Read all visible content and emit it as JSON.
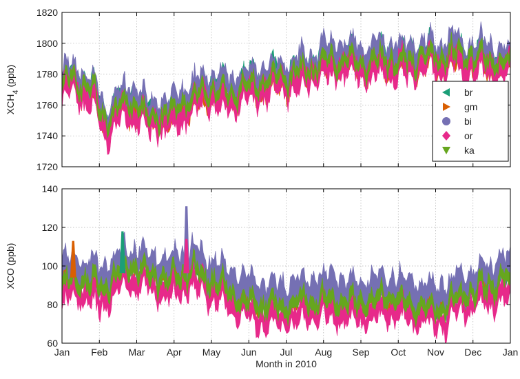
{
  "chart_data": [
    {
      "type": "scatter",
      "panel": "top",
      "ylabel": "XCH",
      "ylabel_sub": "4",
      "ylabel_unit": "(ppb)",
      "ylim": [
        1720,
        1820
      ],
      "yticks": [
        1720,
        1740,
        1760,
        1780,
        1800,
        1820
      ],
      "xlim": [
        0,
        12
      ],
      "grid": true,
      "legend_position": "right",
      "legend": [
        {
          "name": "br",
          "marker": "triangle-left",
          "color": "#1b9e77"
        },
        {
          "name": "gm",
          "marker": "triangle-right",
          "color": "#d95f02"
        },
        {
          "name": "bi",
          "marker": "circle",
          "color": "#7570b3"
        },
        {
          "name": "or",
          "marker": "diamond",
          "color": "#e7298a"
        },
        {
          "name": "ka",
          "marker": "triangle-down",
          "color": "#66a61e"
        }
      ],
      "series_order": [
        "br",
        "gm",
        "bi",
        "or",
        "ka"
      ],
      "series_offsets": {
        "br": 3,
        "gm": -3,
        "bi": 5,
        "or": -5,
        "ka": 0
      },
      "series_spread": {
        "br": 3,
        "gm": 3,
        "bi": 4,
        "or": 4,
        "ka": 2
      },
      "trend": [
        [
          0,
          1768
        ],
        [
          0.1,
          1775
        ],
        [
          0.3,
          1778
        ],
        [
          0.6,
          1772
        ],
        [
          0.9,
          1766
        ],
        [
          1.0,
          1758
        ],
        [
          1.2,
          1748
        ],
        [
          1.5,
          1758
        ],
        [
          1.75,
          1762
        ],
        [
          2.0,
          1760
        ],
        [
          2.3,
          1752
        ],
        [
          2.6,
          1754
        ],
        [
          2.9,
          1752
        ],
        [
          3.2,
          1760
        ],
        [
          3.5,
          1764
        ],
        [
          3.8,
          1768
        ],
        [
          4.0,
          1770
        ],
        [
          4.3,
          1768
        ],
        [
          4.6,
          1768
        ],
        [
          4.8,
          1772
        ],
        [
          5.0,
          1772
        ],
        [
          5.3,
          1774
        ],
        [
          5.6,
          1776
        ],
        [
          5.9,
          1778
        ],
        [
          6.2,
          1780
        ],
        [
          6.5,
          1782
        ],
        [
          6.8,
          1786
        ],
        [
          7.1,
          1788
        ],
        [
          7.4,
          1790
        ],
        [
          7.7,
          1790
        ],
        [
          8.0,
          1788
        ],
        [
          8.3,
          1788
        ],
        [
          8.6,
          1790
        ],
        [
          8.9,
          1790
        ],
        [
          9.2,
          1788
        ],
        [
          9.5,
          1790
        ],
        [
          9.8,
          1792
        ],
        [
          10.1,
          1790
        ],
        [
          10.4,
          1794
        ],
        [
          10.7,
          1792
        ],
        [
          11.0,
          1790
        ],
        [
          11.3,
          1790
        ],
        [
          11.6,
          1788
        ],
        [
          12.0,
          1786
        ]
      ],
      "amplitude": 8
    },
    {
      "type": "scatter",
      "panel": "bottom",
      "xlabel": "Month in 2010",
      "ylabel": "XCO (ppb)",
      "ylim": [
        60,
        140
      ],
      "yticks": [
        60,
        80,
        100,
        120,
        140
      ],
      "xlim": [
        0,
        12
      ],
      "xticklabels": [
        "Jan",
        "Feb",
        "Mar",
        "Apr",
        "May",
        "Jun",
        "Jul",
        "Aug",
        "Sep",
        "Oct",
        "Nov",
        "Dec",
        "Jan"
      ],
      "grid": true,
      "series_order": [
        "br",
        "gm",
        "bi",
        "or",
        "ka"
      ],
      "series_offsets": {
        "br": 2,
        "gm": 1,
        "bi": 6,
        "or": -6,
        "ka": 0
      },
      "series_spread": {
        "br": 2,
        "gm": 2,
        "bi": 4,
        "or": 3,
        "ka": 2
      },
      "trend": [
        [
          0,
          90
        ],
        [
          0.3,
          94
        ],
        [
          0.6,
          92
        ],
        [
          1.0,
          88
        ],
        [
          1.3,
          92
        ],
        [
          1.6,
          96
        ],
        [
          1.8,
          100
        ],
        [
          2.0,
          98
        ],
        [
          2.3,
          96
        ],
        [
          2.6,
          94
        ],
        [
          2.9,
          93
        ],
        [
          3.2,
          95
        ],
        [
          3.5,
          98
        ],
        [
          3.7,
          96
        ],
        [
          4.0,
          93
        ],
        [
          4.3,
          90
        ],
        [
          4.6,
          86
        ],
        [
          4.9,
          82
        ],
        [
          5.2,
          80
        ],
        [
          5.5,
          79
        ],
        [
          5.8,
          79
        ],
        [
          6.1,
          80
        ],
        [
          6.4,
          81
        ],
        [
          6.7,
          82
        ],
        [
          7.0,
          84
        ],
        [
          7.3,
          82
        ],
        [
          7.6,
          80
        ],
        [
          7.9,
          80
        ],
        [
          8.2,
          82
        ],
        [
          8.5,
          82
        ],
        [
          8.8,
          84
        ],
        [
          9.1,
          82
        ],
        [
          9.4,
          80
        ],
        [
          9.7,
          80
        ],
        [
          10.0,
          78
        ],
        [
          10.3,
          80
        ],
        [
          10.6,
          84
        ],
        [
          10.9,
          86
        ],
        [
          11.2,
          88
        ],
        [
          11.5,
          90
        ],
        [
          11.8,
          92
        ],
        [
          12.0,
          92
        ]
      ],
      "amplitude": 6,
      "peaks": [
        {
          "x": 3.33,
          "series": "bi",
          "y": 131
        },
        {
          "x": 1.62,
          "series": "br",
          "y": 118
        },
        {
          "x": 0.3,
          "series": "gm",
          "y": 113
        },
        {
          "x": 3.33,
          "series": "or",
          "y": 114
        }
      ]
    }
  ]
}
